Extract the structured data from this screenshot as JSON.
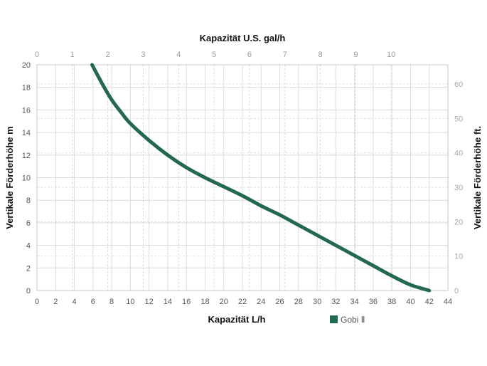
{
  "chart_data": {
    "type": "line",
    "title": "",
    "xlabel": "Kapazität L/h",
    "ylabel": "Vertikale Förderhöhe m",
    "x2label": "Kapazität U.S. gal/h",
    "y2label": "Vertikale Förderhöhe ft.",
    "xlim": [
      0,
      44
    ],
    "ylim": [
      0,
      20
    ],
    "x2lim": [
      0,
      11.6
    ],
    "y2lim": [
      0,
      65.6
    ],
    "x_ticks": [
      0,
      2,
      4,
      6,
      8,
      10,
      12,
      14,
      16,
      18,
      20,
      22,
      24,
      26,
      28,
      30,
      32,
      34,
      36,
      38,
      40,
      42,
      44
    ],
    "y_ticks": [
      0,
      2,
      4,
      6,
      8,
      10,
      12,
      14,
      16,
      18,
      20
    ],
    "x2_ticks": [
      0,
      1,
      2,
      3,
      4,
      5,
      6,
      7,
      8,
      9,
      10
    ],
    "y2_ticks": [
      0,
      10,
      20,
      30,
      40,
      50,
      60
    ],
    "grid": true,
    "legend_position": "bottom-right",
    "series": [
      {
        "name": "Gobi Ⅱ",
        "color": "#23684f",
        "x": [
          5.9,
          7,
          8,
          9,
          10,
          12,
          14,
          16,
          18,
          20,
          22,
          24,
          26,
          28,
          30,
          32,
          34,
          36,
          38,
          40,
          42
        ],
        "y": [
          20,
          18.3,
          16.9,
          15.8,
          14.8,
          13.3,
          12.0,
          10.9,
          10.0,
          9.2,
          8.4,
          7.5,
          6.7,
          5.8,
          4.9,
          4.0,
          3.1,
          2.2,
          1.3,
          0.5,
          0
        ]
      }
    ]
  }
}
